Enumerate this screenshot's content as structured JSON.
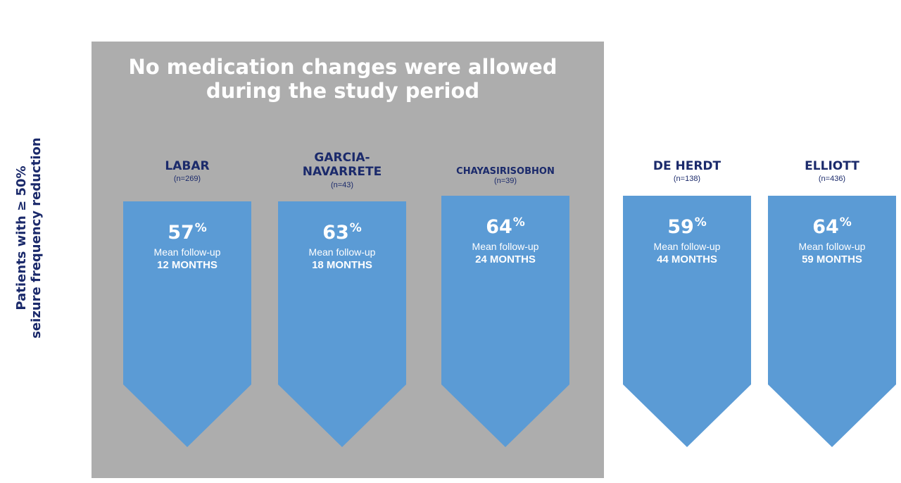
{
  "panel": {
    "title": "No medication changes were allowed during the study period"
  },
  "y_axis": {
    "line1": "Patients with ≥ 50%",
    "line2": "seizure frequency reduction"
  },
  "colors": {
    "panel": "#adadad",
    "arrow": "#5b9bd5",
    "label": "#1b2a6b"
  },
  "chart_data": {
    "type": "bar",
    "title": "",
    "ylabel": "Patients with ≥ 50% seizure frequency reduction",
    "series": [
      {
        "name": "",
        "values": [
          57,
          63,
          64,
          59,
          64
        ]
      }
    ],
    "studies": [
      {
        "name": "LABAR",
        "n": "(n=269)",
        "value": 57,
        "pct": "57",
        "unit": "%",
        "followup_label": "Mean follow-up",
        "followup": "12 MONTHS",
        "in_panel": true
      },
      {
        "name": "GARCIA-\nNAVARRETE",
        "n": "(n=43)",
        "value": 63,
        "pct": "63",
        "unit": "%",
        "followup_label": "Mean follow-up",
        "followup": "18 MONTHS",
        "in_panel": true
      },
      {
        "name": "CHAYASIRISOBHON",
        "n": "(n=39)",
        "value": 64,
        "pct": "64",
        "unit": "%",
        "followup_label": "Mean follow-up",
        "followup": "24 MONTHS",
        "in_panel": true
      },
      {
        "name": "DE HERDT",
        "n": "(n=138)",
        "value": 59,
        "pct": "59",
        "unit": "%",
        "followup_label": "Mean follow-up",
        "followup": "44 MONTHS",
        "in_panel": false
      },
      {
        "name": "ELLIOTT",
        "n": "(n=436)",
        "value": 64,
        "pct": "64",
        "unit": "%",
        "followup_label": "Mean follow-up",
        "followup": "59 MONTHS",
        "in_panel": false
      }
    ]
  }
}
